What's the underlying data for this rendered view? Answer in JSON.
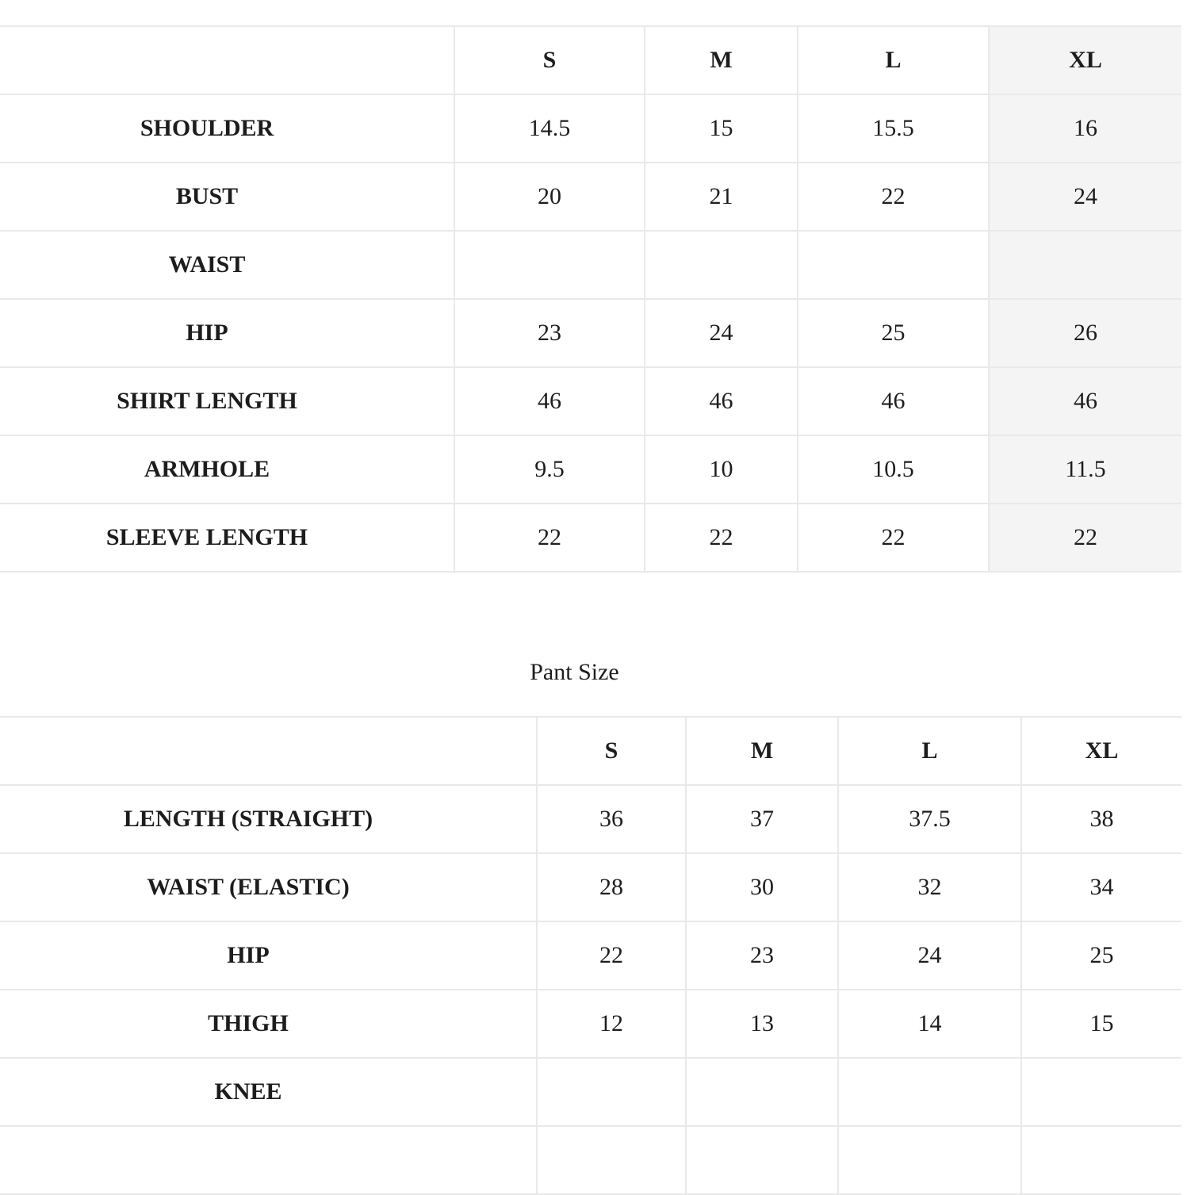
{
  "page": {
    "background_color": "#ffffff",
    "text_color": "#1d1d1d",
    "grid_line_color": "#e9e9e9",
    "highlight_column_color": "#f4f4f4"
  },
  "shirt_table": {
    "columns": [
      "",
      "S",
      "M",
      "L",
      "XL"
    ],
    "highlight_column": 4,
    "rows": [
      {
        "label": "SHOULDER",
        "values": [
          "14.5",
          "15",
          "15.5",
          "16"
        ]
      },
      {
        "label": "BUST",
        "values": [
          "20",
          "21",
          "22",
          "24"
        ]
      },
      {
        "label": "WAIST",
        "values": [
          "",
          "",
          "",
          ""
        ]
      },
      {
        "label": "HIP",
        "values": [
          "23",
          "24",
          "25",
          "26"
        ]
      },
      {
        "label": "SHIRT LENGTH",
        "values": [
          "46",
          "46",
          "46",
          "46"
        ]
      },
      {
        "label": "ARMHOLE",
        "values": [
          "9.5",
          "10",
          "10.5",
          "11.5"
        ]
      },
      {
        "label": "SLEEVE LENGTH",
        "values": [
          "22",
          "22",
          "22",
          "22"
        ]
      }
    ]
  },
  "pant_section": {
    "caption": "Pant Size"
  },
  "pant_table": {
    "columns": [
      "",
      "S",
      "M",
      "L",
      "XL"
    ],
    "highlight_column": null,
    "rows": [
      {
        "label": "LENGTH (STRAIGHT)",
        "values": [
          "36",
          "37",
          "37.5",
          "38"
        ]
      },
      {
        "label": "WAIST (ELASTIC)",
        "values": [
          "28",
          "30",
          "32",
          "34"
        ]
      },
      {
        "label": "HIP",
        "values": [
          "22",
          "23",
          "24",
          "25"
        ]
      },
      {
        "label": "THIGH",
        "values": [
          "12",
          "13",
          "14",
          "15"
        ]
      },
      {
        "label": "KNEE",
        "values": [
          "",
          "",
          "",
          ""
        ]
      },
      {
        "label": "",
        "values": [
          "",
          "",
          "",
          ""
        ]
      }
    ]
  }
}
